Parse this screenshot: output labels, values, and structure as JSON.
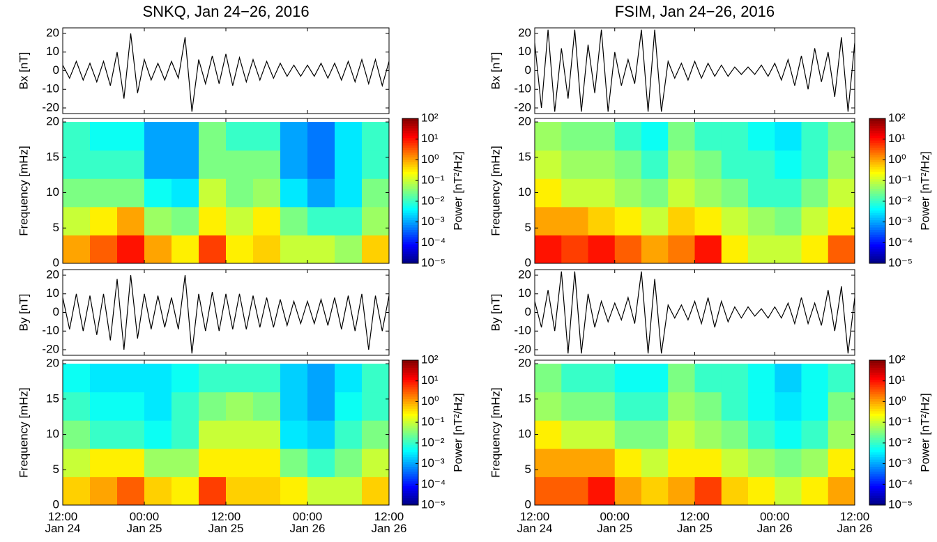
{
  "chart_data": [
    {
      "type": "line",
      "title": "SNKQ, Jan 24−26, 2016",
      "ylabel": "Bx [nT]",
      "color": "#000000",
      "xlim": [
        0,
        48
      ],
      "xticks": [
        0,
        12,
        24,
        36,
        48
      ],
      "ylim": [
        -23,
        23
      ],
      "yticks": [
        -20,
        -10,
        0,
        10,
        20
      ],
      "x": [
        0,
        1,
        2,
        3,
        4,
        5,
        6,
        7,
        8,
        9,
        10,
        11,
        12,
        13,
        14,
        15,
        16,
        17,
        18,
        19,
        20,
        21,
        22,
        23,
        24,
        25,
        26,
        27,
        28,
        29,
        30,
        31,
        32,
        33,
        34,
        35,
        36,
        37,
        38,
        39,
        40,
        41,
        42,
        43,
        44,
        45,
        46,
        47,
        48
      ],
      "values": [
        3,
        -4,
        5,
        -5,
        4,
        -6,
        5,
        -8,
        10,
        -15,
        20,
        -12,
        6,
        -5,
        4,
        -5,
        5,
        -4,
        18,
        -22,
        6,
        -7,
        8,
        -7,
        9,
        -8,
        7,
        -6,
        6,
        -5,
        5,
        -4,
        4,
        -3,
        3,
        -3,
        3,
        -3,
        4,
        -4,
        4,
        -5,
        5,
        -6,
        6,
        -7,
        6,
        -8,
        5
      ]
    },
    {
      "type": "heatmap",
      "ylabel": "Frequency [mHz]",
      "zlabel": "Power [nT²/Hz]",
      "zscale": "log",
      "xlim": [
        0,
        48
      ],
      "xticks": [
        0,
        12,
        24,
        36,
        48
      ],
      "ylim": [
        0,
        20.5
      ],
      "yticks": [
        0,
        5,
        10,
        15,
        20
      ],
      "xbins": [
        0,
        4,
        8,
        12,
        16,
        20,
        24,
        28,
        32,
        36,
        40,
        44,
        48
      ],
      "ybins": [
        0,
        4,
        8,
        12,
        16,
        20
      ],
      "zlim": [
        1e-05,
        100
      ],
      "zticks": [
        {
          "value": 100,
          "label": "10²"
        },
        {
          "value": 10,
          "label": "10¹"
        },
        {
          "value": 1,
          "label": "10⁰"
        },
        {
          "value": 0.1,
          "label": "10⁻¹"
        },
        {
          "value": 0.01,
          "label": "10⁻²"
        },
        {
          "value": 0.001,
          "label": "10⁻³"
        },
        {
          "value": 0.0001,
          "label": "10⁻⁴"
        },
        {
          "value": 1e-05,
          "label": "10⁻⁵"
        }
      ],
      "z": [
        [
          1,
          3,
          10,
          1,
          0.3,
          5,
          0.3,
          0.5,
          0.1,
          0.1,
          0.05,
          0.5
        ],
        [
          0.1,
          0.3,
          1,
          0.05,
          0.03,
          0.3,
          0.1,
          0.3,
          0.03,
          0.01,
          0.01,
          0.05
        ],
        [
          0.03,
          0.03,
          0.03,
          0.005,
          0.003,
          0.1,
          0.03,
          0.05,
          0.003,
          0.001,
          0.003,
          0.03
        ],
        [
          0.01,
          0.01,
          0.01,
          0.001,
          0.001,
          0.03,
          0.03,
          0.03,
          0.001,
          0.0005,
          0.003,
          0.01
        ],
        [
          0.01,
          0.005,
          0.005,
          0.001,
          0.001,
          0.03,
          0.01,
          0.01,
          0.001,
          0.0005,
          0.003,
          0.01
        ]
      ]
    },
    {
      "type": "line",
      "ylabel": "By [nT]",
      "color": "#000000",
      "xlim": [
        0,
        48
      ],
      "xticks": [
        0,
        12,
        24,
        36,
        48
      ],
      "ylim": [
        -23,
        23
      ],
      "yticks": [
        -20,
        -10,
        0,
        10,
        20
      ],
      "x": [
        0,
        1,
        2,
        3,
        4,
        5,
        6,
        7,
        8,
        9,
        10,
        11,
        12,
        13,
        14,
        15,
        16,
        17,
        18,
        19,
        20,
        21,
        22,
        23,
        24,
        25,
        26,
        27,
        28,
        29,
        30,
        31,
        32,
        33,
        34,
        35,
        36,
        37,
        38,
        39,
        40,
        41,
        42,
        43,
        44,
        45,
        46,
        47,
        48
      ],
      "values": [
        8,
        -9,
        10,
        -10,
        9,
        -12,
        10,
        -15,
        18,
        -20,
        20,
        -14,
        10,
        -9,
        9,
        -8,
        8,
        -9,
        20,
        -22,
        10,
        -10,
        11,
        -10,
        10,
        -9,
        10,
        -9,
        9,
        -8,
        8,
        -8,
        7,
        -7,
        6,
        -6,
        6,
        -6,
        7,
        -7,
        8,
        -9,
        9,
        -10,
        10,
        -20,
        9,
        -10,
        9
      ]
    },
    {
      "type": "heatmap",
      "ylabel": "Frequency [mHz]",
      "zlabel": "Power [nT²/Hz]",
      "zscale": "log",
      "xlim": [
        0,
        48
      ],
      "xticks": [
        {
          "value": 0,
          "label": "12:00\nJan 24"
        },
        {
          "value": 12,
          "label": "00:00\nJan 25"
        },
        {
          "value": 24,
          "label": "12:00\nJan 25"
        },
        {
          "value": 36,
          "label": "00:00\nJan 26"
        },
        {
          "value": 48,
          "label": "12:00\nJan 26"
        }
      ],
      "ylim": [
        0,
        20.5
      ],
      "yticks": [
        0,
        5,
        10,
        15,
        20
      ],
      "xbins": [
        0,
        4,
        8,
        12,
        16,
        20,
        24,
        28,
        32,
        36,
        40,
        44,
        48
      ],
      "ybins": [
        0,
        4,
        8,
        12,
        16,
        20
      ],
      "zlim": [
        1e-05,
        100
      ],
      "zticks": [
        {
          "value": 100,
          "label": "10²"
        },
        {
          "value": 10,
          "label": "10¹"
        },
        {
          "value": 1,
          "label": "10⁰"
        },
        {
          "value": 0.1,
          "label": "10⁻¹"
        },
        {
          "value": 0.01,
          "label": "10⁻²"
        },
        {
          "value": 0.001,
          "label": "10⁻³"
        },
        {
          "value": 0.0001,
          "label": "10⁻⁴"
        },
        {
          "value": 1e-05,
          "label": "10⁻⁵"
        }
      ],
      "z": [
        [
          0.5,
          1,
          3,
          0.5,
          0.3,
          5,
          0.5,
          0.5,
          0.3,
          0.1,
          0.1,
          0.5
        ],
        [
          0.1,
          0.3,
          0.3,
          0.05,
          0.05,
          0.3,
          0.3,
          0.3,
          0.03,
          0.01,
          0.03,
          0.1
        ],
        [
          0.03,
          0.01,
          0.01,
          0.005,
          0.01,
          0.1,
          0.1,
          0.1,
          0.003,
          0.002,
          0.01,
          0.03
        ],
        [
          0.01,
          0.005,
          0.005,
          0.003,
          0.01,
          0.03,
          0.05,
          0.03,
          0.002,
          0.001,
          0.005,
          0.01
        ],
        [
          0.005,
          0.003,
          0.003,
          0.003,
          0.005,
          0.01,
          0.01,
          0.01,
          0.002,
          0.001,
          0.003,
          0.01
        ]
      ]
    },
    {
      "type": "line",
      "title": "FSIM, Jan 24−26, 2016",
      "ylabel": "Bx [nT]",
      "color": "#000000",
      "xlim": [
        0,
        48
      ],
      "xticks": [
        0,
        12,
        24,
        36,
        48
      ],
      "ylim": [
        -23,
        23
      ],
      "yticks": [
        -20,
        -10,
        0,
        10,
        20
      ],
      "x": [
        0,
        1,
        2,
        3,
        4,
        5,
        6,
        7,
        8,
        9,
        10,
        11,
        12,
        13,
        14,
        15,
        16,
        17,
        18,
        19,
        20,
        21,
        22,
        23,
        24,
        25,
        26,
        27,
        28,
        29,
        30,
        31,
        32,
        33,
        34,
        35,
        36,
        37,
        38,
        39,
        40,
        41,
        42,
        43,
        44,
        45,
        46,
        47,
        48
      ],
      "values": [
        15,
        -20,
        22,
        -22,
        12,
        -15,
        22,
        -22,
        14,
        -12,
        22,
        -22,
        10,
        -8,
        6,
        -7,
        22,
        -22,
        22,
        -22,
        5,
        -4,
        4,
        -5,
        5,
        -4,
        4,
        -3,
        3,
        -3,
        2,
        -2,
        2,
        -2,
        3,
        -3,
        4,
        -5,
        6,
        -8,
        8,
        -10,
        12,
        -6,
        10,
        -14,
        18,
        -22,
        15
      ]
    },
    {
      "type": "heatmap",
      "ylabel": "Frequency [mHz]",
      "zlabel": "Power [nT²/Hz]",
      "zscale": "log",
      "xlim": [
        0,
        48
      ],
      "xticks": [
        0,
        12,
        24,
        36,
        48
      ],
      "ylim": [
        0,
        20.5
      ],
      "yticks": [
        0,
        5,
        10,
        15,
        20
      ],
      "xbins": [
        0,
        4,
        8,
        12,
        16,
        20,
        24,
        28,
        32,
        36,
        40,
        44,
        48
      ],
      "ybins": [
        0,
        4,
        8,
        12,
        16,
        20
      ],
      "zlim": [
        1e-05,
        100
      ],
      "zticks": [
        {
          "value": 100,
          "label": "10²"
        },
        {
          "value": 10,
          "label": "10¹"
        },
        {
          "value": 1,
          "label": "10⁰"
        },
        {
          "value": 0.1,
          "label": "10⁻¹"
        },
        {
          "value": 0.01,
          "label": "10⁻²"
        },
        {
          "value": 0.001,
          "label": "10⁻³"
        },
        {
          "value": 0.0001,
          "label": "10⁻⁴"
        },
        {
          "value": 1e-05,
          "label": "10⁻⁵"
        }
      ],
      "z": [
        [
          10,
          5,
          10,
          3,
          1,
          2,
          10,
          0.3,
          0.1,
          0.1,
          0.3,
          3
        ],
        [
          1,
          1,
          0.5,
          0.3,
          0.1,
          0.5,
          0.3,
          0.1,
          0.05,
          0.03,
          0.1,
          0.3
        ],
        [
          0.3,
          0.1,
          0.1,
          0.05,
          0.03,
          0.1,
          0.05,
          0.03,
          0.01,
          0.01,
          0.03,
          0.1
        ],
        [
          0.1,
          0.05,
          0.05,
          0.03,
          0.01,
          0.05,
          0.03,
          0.01,
          0.01,
          0.005,
          0.01,
          0.05
        ],
        [
          0.05,
          0.03,
          0.03,
          0.01,
          0.005,
          0.03,
          0.01,
          0.01,
          0.005,
          0.003,
          0.01,
          0.03
        ]
      ]
    },
    {
      "type": "line",
      "ylabel": "By [nT]",
      "color": "#000000",
      "xlim": [
        0,
        48
      ],
      "xticks": [
        0,
        12,
        24,
        36,
        48
      ],
      "ylim": [
        -23,
        23
      ],
      "yticks": [
        -20,
        -10,
        0,
        10,
        20
      ],
      "x": [
        0,
        1,
        2,
        3,
        4,
        5,
        6,
        7,
        8,
        9,
        10,
        11,
        12,
        13,
        14,
        15,
        16,
        17,
        18,
        19,
        20,
        21,
        22,
        23,
        24,
        25,
        26,
        27,
        28,
        29,
        30,
        31,
        32,
        33,
        34,
        35,
        36,
        37,
        38,
        39,
        40,
        41,
        42,
        43,
        44,
        45,
        46,
        47,
        48
      ],
      "values": [
        6,
        -8,
        12,
        -10,
        22,
        -22,
        22,
        -22,
        10,
        -8,
        6,
        -5,
        5,
        -4,
        8,
        -6,
        22,
        -22,
        18,
        -22,
        4,
        -3,
        4,
        -4,
        6,
        -6,
        8,
        -8,
        6,
        -5,
        3,
        -3,
        3,
        -2,
        2,
        -3,
        3,
        -3,
        5,
        -6,
        8,
        -6,
        5,
        -7,
        12,
        -10,
        14,
        -22,
        8
      ]
    },
    {
      "type": "heatmap",
      "ylabel": "Frequency [mHz]",
      "zlabel": "Power [nT²/Hz]",
      "zscale": "log",
      "xlim": [
        0,
        48
      ],
      "xticks": [
        {
          "value": 0,
          "label": "12:00\nJan 24"
        },
        {
          "value": 12,
          "label": "00:00\nJan 25"
        },
        {
          "value": 24,
          "label": "12:00\nJan 25"
        },
        {
          "value": 36,
          "label": "00:00\nJan 26"
        },
        {
          "value": 48,
          "label": "12:00\nJan 26"
        }
      ],
      "ylim": [
        0,
        20.5
      ],
      "yticks": [
        0,
        5,
        10,
        15,
        20
      ],
      "xbins": [
        0,
        4,
        8,
        12,
        16,
        20,
        24,
        28,
        32,
        36,
        40,
        44,
        48
      ],
      "ybins": [
        0,
        4,
        8,
        12,
        16,
        20
      ],
      "zlim": [
        1e-05,
        100
      ],
      "zticks": [
        {
          "value": 100,
          "label": "10²"
        },
        {
          "value": 10,
          "label": "10¹"
        },
        {
          "value": 1,
          "label": "10⁰"
        },
        {
          "value": 0.1,
          "label": "10⁻¹"
        },
        {
          "value": 0.01,
          "label": "10⁻²"
        },
        {
          "value": 0.001,
          "label": "10⁻³"
        },
        {
          "value": 0.0001,
          "label": "10⁻⁴"
        },
        {
          "value": 1e-05,
          "label": "10⁻⁵"
        }
      ],
      "z": [
        [
          3,
          3,
          10,
          1,
          0.5,
          1,
          5,
          0.5,
          0.3,
          0.1,
          0.3,
          1
        ],
        [
          1,
          1,
          1,
          0.3,
          0.1,
          0.3,
          0.3,
          0.1,
          0.05,
          0.03,
          0.05,
          0.3
        ],
        [
          0.3,
          0.1,
          0.1,
          0.03,
          0.03,
          0.1,
          0.05,
          0.03,
          0.01,
          0.005,
          0.01,
          0.05
        ],
        [
          0.05,
          0.03,
          0.03,
          0.01,
          0.01,
          0.05,
          0.03,
          0.01,
          0.005,
          0.003,
          0.005,
          0.03
        ],
        [
          0.03,
          0.01,
          0.01,
          0.005,
          0.005,
          0.03,
          0.01,
          0.01,
          0.005,
          0.002,
          0.005,
          0.01
        ]
      ]
    }
  ]
}
